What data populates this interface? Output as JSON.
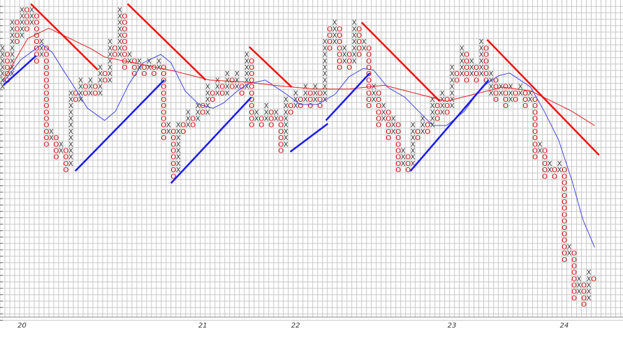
{
  "chart_data": {
    "type": "point-and-figure",
    "xlim": [
      -0.5,
      127
    ],
    "ylim": [
      -1,
      48.5
    ],
    "grid": true,
    "x_color": "#333333",
    "o_color": "#cc0000",
    "columns": [
      [
        "X",
        35,
        41
      ],
      [
        "O",
        36,
        40
      ],
      [
        "X",
        37,
        45
      ],
      [
        "O",
        42,
        45
      ],
      [
        "X",
        43,
        47
      ],
      [
        "O",
        44,
        47
      ],
      [
        "X",
        45,
        47
      ],
      [
        "O",
        39,
        46
      ],
      [
        "X",
        40,
        42
      ],
      [
        "O",
        26,
        41
      ],
      [
        "X",
        27,
        28
      ],
      [
        "O",
        24,
        27
      ],
      [
        "X",
        25,
        26
      ],
      [
        "O",
        22,
        25
      ],
      [
        "X",
        23,
        34
      ],
      [
        "O",
        33,
        34
      ],
      [
        "X",
        33,
        36
      ],
      [
        "O",
        34,
        35
      ],
      [
        "X",
        34,
        36
      ],
      [
        "O",
        34,
        35
      ],
      [
        "X",
        34,
        38
      ],
      [
        "O",
        36,
        37
      ],
      [
        "X",
        36,
        42
      ],
      [
        "O",
        40,
        41
      ],
      [
        "X",
        40,
        47
      ],
      [
        "O",
        38,
        46
      ],
      [
        "X",
        39,
        40
      ],
      [
        "O",
        37,
        39
      ],
      [
        "X",
        38,
        39
      ],
      [
        "O",
        37,
        38
      ],
      [
        "X",
        38,
        39
      ],
      [
        "O",
        37,
        38
      ],
      [
        "X",
        38,
        39
      ],
      [
        "O",
        27,
        38
      ],
      [
        "X",
        28,
        29
      ],
      [
        "O",
        21,
        28
      ],
      [
        "X",
        22,
        29
      ],
      [
        "O",
        28,
        29
      ],
      [
        "X",
        29,
        31
      ],
      [
        "O",
        29,
        30
      ],
      [
        "X",
        30,
        32
      ],
      [
        "O",
        31,
        32
      ],
      [
        "X",
        31,
        35
      ],
      [
        "O",
        33,
        34
      ],
      [
        "X",
        34,
        36
      ],
      [
        "O",
        34,
        35
      ],
      [
        "X",
        34,
        37
      ],
      [
        "O",
        35,
        36
      ],
      [
        "X",
        35,
        37
      ],
      [
        "O",
        34,
        35
      ],
      [
        "X",
        35,
        40
      ],
      [
        "O",
        29,
        39
      ],
      [
        "X",
        30,
        31
      ],
      [
        "O",
        29,
        30
      ],
      [
        "X",
        30,
        32
      ],
      [
        "O",
        29,
        31
      ],
      [
        "X",
        30,
        31
      ],
      [
        "O",
        25,
        30
      ],
      [
        "X",
        26,
        33
      ],
      [
        "O",
        31,
        32
      ],
      [
        "X",
        32,
        34
      ],
      [
        "O",
        32,
        33
      ],
      [
        "X",
        33,
        35
      ],
      [
        "O",
        32,
        34
      ],
      [
        "X",
        33,
        35
      ],
      [
        "O",
        32,
        34
      ],
      [
        "X",
        33,
        42
      ],
      [
        "O",
        41,
        44
      ],
      [
        "X",
        42,
        45
      ],
      [
        "O",
        38,
        44
      ],
      [
        "X",
        39,
        41
      ],
      [
        "O",
        38,
        40
      ],
      [
        "X",
        39,
        45
      ],
      [
        "O",
        40,
        44
      ],
      [
        "X",
        41,
        42
      ],
      [
        "O",
        32,
        41
      ],
      [
        "X",
        33,
        35
      ],
      [
        "O",
        29,
        34
      ],
      [
        "X",
        30,
        32
      ],
      [
        "O",
        27,
        31
      ],
      [
        "X",
        28,
        30
      ],
      [
        "O",
        22,
        29
      ],
      [
        "X",
        23,
        25
      ],
      [
        "O",
        22,
        24
      ],
      [
        "X",
        23,
        29
      ],
      [
        "O",
        27,
        28
      ],
      [
        "X",
        28,
        30
      ],
      [
        "O",
        28,
        29
      ],
      [
        "X",
        29,
        33
      ],
      [
        "O",
        30,
        32
      ],
      [
        "X",
        31,
        34
      ],
      [
        "O",
        31,
        33
      ],
      [
        "X",
        32,
        38
      ],
      [
        "O",
        36,
        37
      ],
      [
        "X",
        37,
        41
      ],
      [
        "O",
        36,
        40
      ],
      [
        "X",
        37,
        39
      ],
      [
        "O",
        36,
        38
      ],
      [
        "X",
        37,
        42
      ],
      [
        "O",
        36,
        41
      ],
      [
        "X",
        34,
        37
      ],
      [
        "O",
        33,
        36
      ],
      [
        "X",
        34,
        35
      ],
      [
        "O",
        32,
        35
      ],
      [
        "X",
        33,
        35
      ],
      [
        "O",
        33,
        34
      ],
      [
        "X",
        34,
        35
      ],
      [
        "O",
        32,
        34
      ],
      [
        "X",
        33,
        34
      ],
      [
        "O",
        24,
        33
      ],
      [
        "X",
        25,
        26
      ],
      [
        "O",
        21,
        25
      ],
      [
        "X",
        22,
        23
      ],
      [
        "O",
        21,
        22
      ],
      [
        "X",
        22,
        23
      ],
      [
        "O",
        8,
        22
      ],
      [
        "X",
        9,
        10
      ],
      [
        "O",
        2,
        9
      ],
      [
        "X",
        3,
        5
      ],
      [
        "O",
        1,
        4
      ],
      [
        "X",
        2,
        6
      ],
      [
        "O",
        5,
        5
      ]
    ],
    "xlabels": [
      {
        "label": "20",
        "col": 4
      },
      {
        "label": "21",
        "col": 41
      },
      {
        "label": "22",
        "col": 60
      },
      {
        "label": "23",
        "col": 92
      },
      {
        "label": "24",
        "col": 115
      }
    ],
    "series": [
      {
        "color": "#4444dd",
        "x": [
          0.2,
          3.8,
          8.1,
          10.2,
          12.4,
          15.2,
          17.4,
          20.9,
          23.1,
          25.9,
          28.8,
          32.4,
          34.5,
          37.4,
          40.2,
          43.1,
          45.2,
          48.1,
          50.2,
          53.8,
          58.1,
          60.9,
          64.5,
          68.1,
          70.9,
          73.8,
          75.9,
          78.8,
          82.4,
          85.2,
          88.1,
          90.9,
          94.5,
          98.1,
          101.6,
          103.8,
          108.1,
          110.9,
          113.8,
          116.6,
          118.8,
          121.2
        ],
        "values": [
          35.7,
          39.2,
          41.6,
          40.3,
          37.6,
          34.3,
          31.6,
          29.7,
          31.1,
          35.4,
          38.7,
          40.0,
          38.7,
          34.3,
          32.2,
          31.6,
          32.4,
          34.3,
          35.4,
          36.0,
          33.8,
          32.2,
          32.2,
          33.8,
          36.5,
          37.8,
          37.6,
          34.9,
          33.3,
          31.1,
          28.9,
          28.9,
          31.1,
          34.9,
          36.7,
          37.1,
          34.9,
          31.1,
          26.7,
          20.2,
          14.2,
          9.9
        ]
      },
      {
        "color": "#e02020",
        "x": [
          0.2,
          5.2,
          9.5,
          13.8,
          18.1,
          20.9,
          28.1,
          35.2,
          42.4,
          49.5,
          56.6,
          63.8,
          70.9,
          78.1,
          85.2,
          90.9,
          96.6,
          102.4,
          108.1,
          112.4,
          116.6,
          121.2
        ],
        "values": [
          36.0,
          42.5,
          44.1,
          42.5,
          40.9,
          39.6,
          38.5,
          37.4,
          36.0,
          35.7,
          35.1,
          34.6,
          34.6,
          35.2,
          33.8,
          32.7,
          33.8,
          34.9,
          34.3,
          32.7,
          31.1,
          28.9
        ]
      }
    ],
    "trendlines": [
      {
        "color": "#ee1111",
        "x": [
          5.8,
          19.5
        ],
        "values": [
          47.9,
          37.6
        ]
      },
      {
        "color": "#ee1111",
        "x": [
          25.6,
          41.6
        ],
        "values": [
          47.9,
          36.0
        ]
      },
      {
        "color": "#ee1111",
        "x": [
          50.5,
          59.2
        ],
        "values": [
          41.2,
          34.9
        ]
      },
      {
        "color": "#ee1111",
        "x": [
          73.5,
          89.5
        ],
        "values": [
          45.0,
          32.7
        ]
      },
      {
        "color": "#ee1111",
        "x": [
          99.2,
          122.1
        ],
        "values": [
          42.3,
          24.3
        ]
      },
      {
        "color": "#1a1aee",
        "x": [
          0.2,
          6.9
        ],
        "values": [
          35.2,
          39.8
        ]
      },
      {
        "color": "#1a1aee",
        "x": [
          14.9,
          33.1
        ],
        "values": [
          21.8,
          36.0
        ]
      },
      {
        "color": "#1a1aee",
        "x": [
          34.5,
          50.9
        ],
        "values": [
          19.9,
          33.3
        ]
      },
      {
        "color": "#1a1aee",
        "x": [
          58.9,
          66.6
        ],
        "values": [
          24.8,
          29.2
        ]
      },
      {
        "color": "#1a1aee",
        "x": [
          66.2,
          75.2
        ],
        "values": [
          29.7,
          37.1
        ]
      },
      {
        "color": "#1a1aee",
        "x": [
          83.5,
          99.5
        ],
        "values": [
          21.8,
          36.0
        ]
      }
    ]
  }
}
